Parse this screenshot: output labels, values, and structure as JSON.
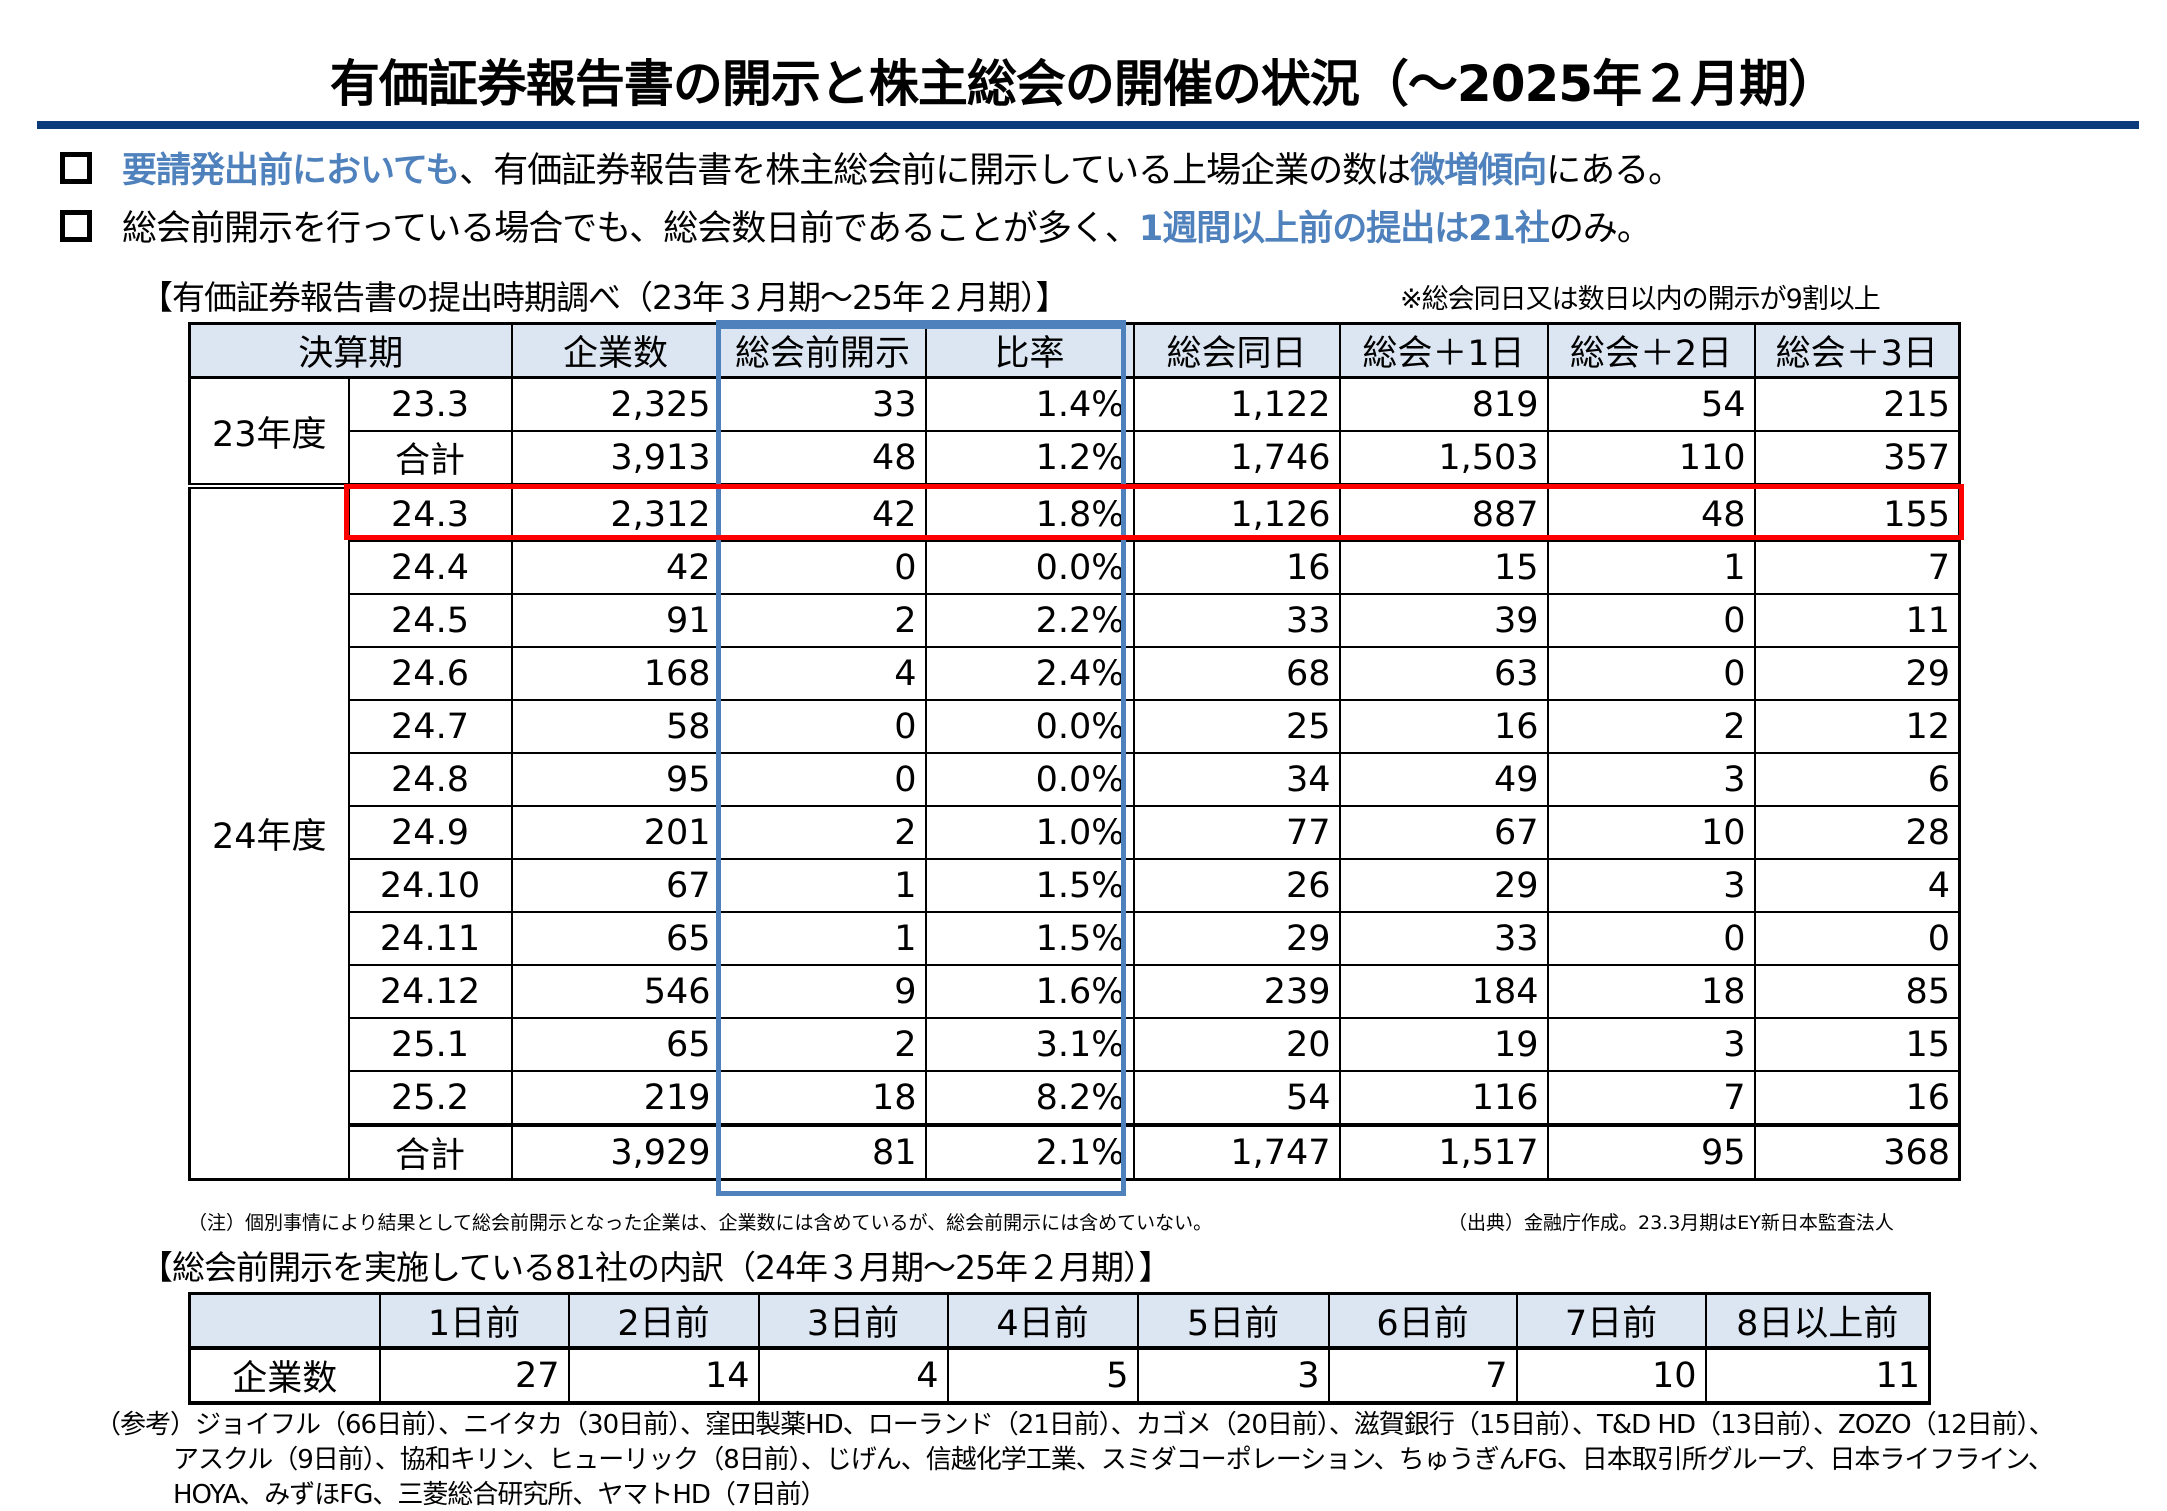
{
  "title": "有価証券報告書の開示と株主総会の開催の状況（～2025年２月期）",
  "bullets": [
    {
      "hl1": "要請発出前においても",
      "text1": "、有価証券報告書を株主総会前に開示している上場企業の数は",
      "hl2": "微増傾向",
      "text2": "にある。"
    },
    {
      "hl1": "",
      "text1": "総会前開示を行っている場合でも、総会数日前であることが多く、",
      "hl2": "1週間以上前の提出は21社",
      "text2": "のみ。"
    }
  ],
  "table1": {
    "heading": "【有価証券報告書の提出時期調べ（23年３月期～25年２月期）】",
    "side_note": "※総会同日又は数日以内の開示が9割以上",
    "headers": [
      "決算期",
      "企業数",
      "総会前開示",
      "比率",
      "総会同日",
      "総会＋1日",
      "総会＋2日",
      "総会＋3日"
    ],
    "groups": [
      {
        "label": "23年度",
        "rows": [
          [
            "23.3",
            "2,325",
            "33",
            "1.4%",
            "1,122",
            "819",
            "54",
            "215"
          ],
          [
            "合計",
            "3,913",
            "48",
            "1.2%",
            "1,746",
            "1,503",
            "110",
            "357"
          ]
        ]
      },
      {
        "label": "24年度",
        "rows": [
          [
            "24.3",
            "2,312",
            "42",
            "1.8%",
            "1,126",
            "887",
            "48",
            "155"
          ],
          [
            "24.4",
            "42",
            "0",
            "0.0%",
            "16",
            "15",
            "1",
            "7"
          ],
          [
            "24.5",
            "91",
            "2",
            "2.2%",
            "33",
            "39",
            "0",
            "11"
          ],
          [
            "24.6",
            "168",
            "4",
            "2.4%",
            "68",
            "63",
            "0",
            "29"
          ],
          [
            "24.7",
            "58",
            "0",
            "0.0%",
            "25",
            "16",
            "2",
            "12"
          ],
          [
            "24.8",
            "95",
            "0",
            "0.0%",
            "34",
            "49",
            "3",
            "6"
          ],
          [
            "24.9",
            "201",
            "2",
            "1.0%",
            "77",
            "67",
            "10",
            "28"
          ],
          [
            "24.10",
            "67",
            "1",
            "1.5%",
            "26",
            "29",
            "3",
            "4"
          ],
          [
            "24.11",
            "65",
            "1",
            "1.5%",
            "29",
            "33",
            "0",
            "0"
          ],
          [
            "24.12",
            "546",
            "9",
            "1.6%",
            "239",
            "184",
            "18",
            "85"
          ],
          [
            "25.1",
            "65",
            "2",
            "3.1%",
            "20",
            "19",
            "3",
            "15"
          ],
          [
            "25.2",
            "219",
            "18",
            "8.2%",
            "54",
            "116",
            "7",
            "16"
          ],
          [
            "合計",
            "3,929",
            "81",
            "2.1%",
            "1,747",
            "1,517",
            "95",
            "368"
          ]
        ]
      }
    ],
    "note_left": "（注）個別事情により結果として総会前開示となった企業は、企業数には含めているが、総会前開示には含めていない。",
    "note_right": "（出典）金融庁作成。23.3月期はEY新日本監査法人"
  },
  "table2": {
    "heading": "【総会前開示を実施している81社の内訳（24年３月期～25年２月期）】",
    "headers": [
      "",
      "1日前",
      "2日前",
      "3日前",
      "4日前",
      "5日前",
      "6日前",
      "7日前",
      "8日以上前"
    ],
    "row_label": "企業数",
    "values": [
      "27",
      "14",
      "4",
      "5",
      "3",
      "7",
      "10",
      "11"
    ]
  },
  "reference": [
    "（参考）ジョイフル（66日前）、ニイタカ（30日前）、窪田製薬HD、ローランド（21日前）、カゴメ（20日前）、滋賀銀行（15日前）、T&D HD（13日前）、ZOZO（12日前）、",
    "アスクル（9日前）、協和キリン、ヒューリック（8日前）、じげん、信越化学工業、スミダコーポレーション、ちゅうぎんFG、日本取引所グループ、日本ライフライン、",
    "HOYA、みずほFG、三菱総合研究所、ヤマトHD（7日前）"
  ],
  "colors": {
    "accent_blue": "#4f81bd",
    "rule_navy": "#0b3a7a",
    "highlight_red": "#ff0000",
    "header_bg": "#dce6f2"
  }
}
